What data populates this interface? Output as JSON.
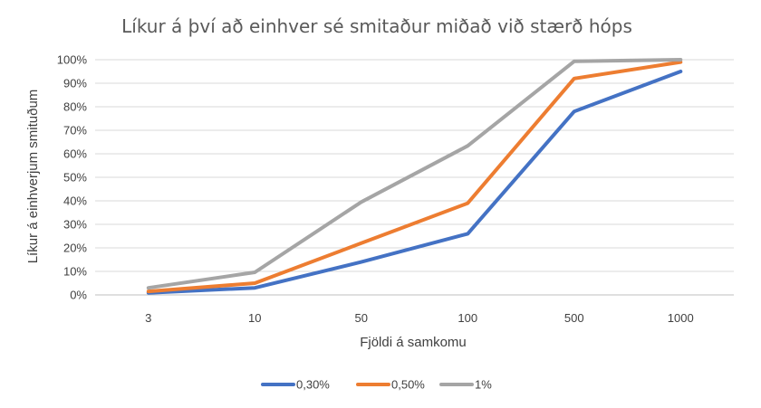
{
  "chart_data": {
    "type": "line",
    "title": "Líkur á því að einhver sé smitaður miðað við stærð hóps",
    "xlabel": "Fjöldi á samkomu",
    "ylabel": "Líkur á einhverjum smituðum",
    "categories": [
      "3",
      "10",
      "50",
      "100",
      "500",
      "1000"
    ],
    "ylim": [
      0,
      100
    ],
    "yticks": [
      0,
      10,
      20,
      30,
      40,
      50,
      60,
      70,
      80,
      90,
      100
    ],
    "ytick_labels": [
      "0%",
      "10%",
      "20%",
      "30%",
      "40%",
      "50%",
      "60%",
      "70%",
      "80%",
      "90%",
      "100%"
    ],
    "grid": true,
    "legend_position": "bottom",
    "series": [
      {
        "name": "0,30%",
        "color": "#4472c4",
        "values": [
          0.9,
          3,
          14,
          26,
          78,
          95
        ]
      },
      {
        "name": "0,50%",
        "color": "#ed7d31",
        "values": [
          1.5,
          5,
          22,
          39,
          92,
          99
        ]
      },
      {
        "name": "1%",
        "color": "#a5a5a5",
        "values": [
          3,
          9.6,
          39.5,
          63.4,
          99.3,
          100
        ]
      }
    ]
  }
}
